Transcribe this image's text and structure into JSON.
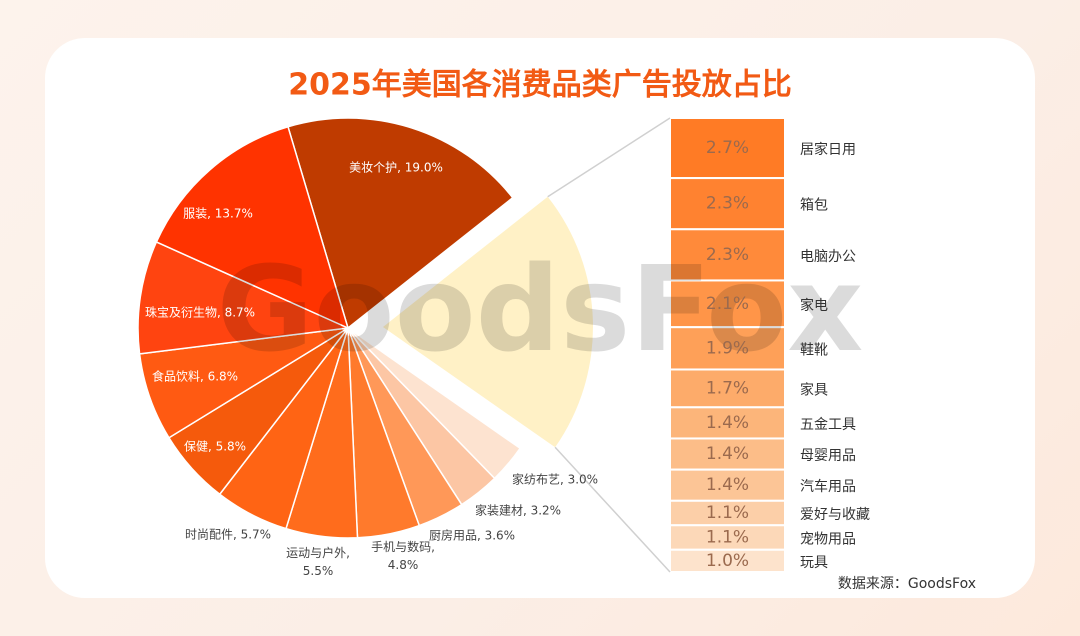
{
  "chart_data": [
    {
      "type": "pie",
      "title": "2025年美国各消费品类广告投放占比",
      "values": [
        19.0,
        3.0,
        3.2,
        3.6,
        4.8,
        5.5,
        5.7,
        5.8,
        6.8,
        8.7,
        13.7
      ],
      "value_labels": [
        "美妆个护, 19.0%",
        "家纺布艺, 3.0%",
        "家装建材, 3.2%",
        "厨房用品, 3.6%",
        "手机与数码, 4.8%",
        "运动与户外, 5.5%",
        "时尚配件, 5.7%",
        "保健, 5.8%",
        "食品饮料, 6.8%",
        "珠宝及衍生物, 8.7%",
        "服装, 13.7%"
      ],
      "colors": [
        "#bf3b00",
        "#fde3d0",
        "#fcc6a4",
        "#ff9858",
        "#ff7a2c",
        "#ff6c1c",
        "#ff6414",
        "#f55a0c",
        "#ff5a12",
        "#ff4410",
        "#ff3300"
      ],
      "detail_color": "#fff1c6"
    },
    {
      "type": "bar",
      "categories": [
        "居家日用",
        "箱包",
        "电脑办公",
        "家电",
        "鞋靴",
        "家具",
        "五金工具",
        "母婴用品",
        "汽车用品",
        "爱好与收藏",
        "宠物用品",
        "玩具"
      ],
      "values": [
        2.7,
        2.3,
        2.3,
        2.1,
        1.9,
        1.7,
        1.4,
        1.4,
        1.4,
        1.1,
        1.1,
        1.0
      ],
      "value_labels": [
        "2.7%",
        "2.3%",
        "2.3%",
        "2.1%",
        "1.9%",
        "1.7%",
        "1.4%",
        "1.4%",
        "1.4%",
        "1.1%",
        "1.1%",
        "1.0%"
      ],
      "colors": [
        "#ff7b25",
        "#ff8230",
        "#ff8a3a",
        "#ff9548",
        "#fea058",
        "#fdab6a",
        "#fcb57a",
        "#fcbd88",
        "#fcc596",
        "#fccfa8",
        "#fcd8b8",
        "#fde3cc"
      ]
    }
  ],
  "source": "数据来源：GoodsFox",
  "watermark": "GoodsFox"
}
